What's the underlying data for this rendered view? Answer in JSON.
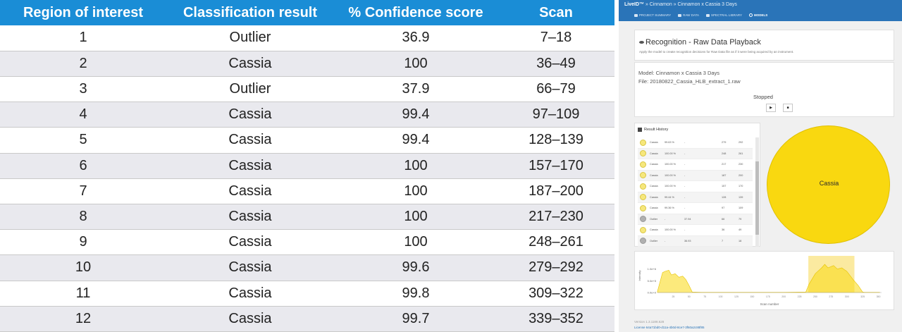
{
  "table": {
    "headers": [
      "Region of interest",
      "Classification result",
      "% Confidence score",
      "Scan"
    ],
    "rows": [
      [
        "1",
        "Outlier",
        "36.9",
        "7–18"
      ],
      [
        "2",
        "Cassia",
        "100",
        "36–49"
      ],
      [
        "3",
        "Outlier",
        "37.9",
        "66–79"
      ],
      [
        "4",
        "Cassia",
        "99.4",
        "97–109"
      ],
      [
        "5",
        "Cassia",
        "99.4",
        "128–139"
      ],
      [
        "6",
        "Cassia",
        "100",
        "157–170"
      ],
      [
        "7",
        "Cassia",
        "100",
        "187–200"
      ],
      [
        "8",
        "Cassia",
        "100",
        "217–230"
      ],
      [
        "9",
        "Cassia",
        "100",
        "248–261"
      ],
      [
        "10",
        "Cassia",
        "99.6",
        "279–292"
      ],
      [
        "11",
        "Cassia",
        "99.8",
        "309–322"
      ],
      [
        "12",
        "Cassia",
        "99.7",
        "339–352"
      ]
    ]
  },
  "app": {
    "brand": "LiveID™",
    "breadcrumb": "» Cinnamon » Cinnamon x Cassia 3 Days",
    "tabs": [
      {
        "label": "PROJECT SUMMARY",
        "icon": "folder-icon"
      },
      {
        "label": "RAW DATA",
        "icon": "raw-data-icon"
      },
      {
        "label": "SPECTRAL LIBRARY",
        "icon": "spectrum-icon"
      },
      {
        "label": "MODELS",
        "icon": "models-icon",
        "active": true
      }
    ],
    "recognition": {
      "title": "Recognition - Raw Data Playback",
      "description": "Apply the model to create recognition decisions for Raw Data file as if it were being acquired by an instrument."
    },
    "model_line": "Model: Cinnamon x Cassia 3 Days",
    "file_line": "File: 20180822_Cassia_HLB_extract_1.raw",
    "status": "Stopped",
    "play_symbol": "▶",
    "stop_symbol": "■",
    "history": {
      "title": "Result History",
      "rows": [
        [
          "Cassia",
          "99.63 %",
          "-",
          "279",
          "292"
        ],
        [
          "Cassia",
          "100.00 %",
          "-",
          "248",
          "261"
        ],
        [
          "Cassia",
          "100.00 %",
          "-",
          "217",
          "230"
        ],
        [
          "Cassia",
          "100.00 %",
          "-",
          "187",
          "200"
        ],
        [
          "Cassia",
          "100.00 %",
          "-",
          "157",
          "170"
        ],
        [
          "Cassia",
          "99.44 %",
          "-",
          "128",
          "139"
        ],
        [
          "Cassia",
          "99.36 %",
          "-",
          "97",
          "109"
        ],
        [
          "Outlier",
          "-",
          "37.94",
          "66",
          "79"
        ],
        [
          "Cassia",
          "100.00 %",
          "-",
          "36",
          "49"
        ],
        [
          "Outlier",
          "-",
          "36.93",
          "7",
          "18"
        ]
      ]
    },
    "pie_label": "Cassia",
    "colors": {
      "accent": "#2a74b8",
      "cassia": "#f9d810",
      "outlier": "#b0b0b0",
      "table_header": "#1a8dd6"
    },
    "chart": {
      "ylabel": "Intensity",
      "xlabel": "Scan number",
      "yticks": [
        "1.0e+6",
        "5.0e+5",
        "0.0e+0"
      ],
      "xticks": [
        "25",
        "50",
        "75",
        "100",
        "125",
        "150",
        "175",
        "200",
        "225",
        "250",
        "275",
        "300",
        "325",
        "350"
      ],
      "highlight_range": [
        279,
        292
      ]
    },
    "version": "Version 1.3.1188.628",
    "license": "License 64a71bd0-d11a-4b0d-8ce7-3f60a2c88f85"
  },
  "chart_data": {
    "type": "area",
    "x": [
      0,
      8,
      12,
      18,
      22,
      28,
      34,
      40,
      45,
      50,
      55,
      70,
      95,
      120,
      160,
      200,
      235,
      240,
      250,
      260,
      265,
      270,
      279,
      285,
      292,
      300,
      310,
      318,
      325,
      328,
      340,
      352
    ],
    "values": [
      0.05,
      0.85,
      0.9,
      0.95,
      0.75,
      0.8,
      0.65,
      0.7,
      0.55,
      0.3,
      0.02,
      0.01,
      0.01,
      0.01,
      0.01,
      0.01,
      0.02,
      0.35,
      0.8,
      1.05,
      1.2,
      1.05,
      1.15,
      1.0,
      1.05,
      0.9,
      0.55,
      0.3,
      0.02,
      0.01,
      0.01,
      0.01
    ],
    "xlabel": "Scan number",
    "ylabel": "Intensity",
    "ylim": [
      0,
      1.5
    ],
    "xlim": [
      0,
      355
    ],
    "highlight": [
      279,
      292
    ]
  }
}
